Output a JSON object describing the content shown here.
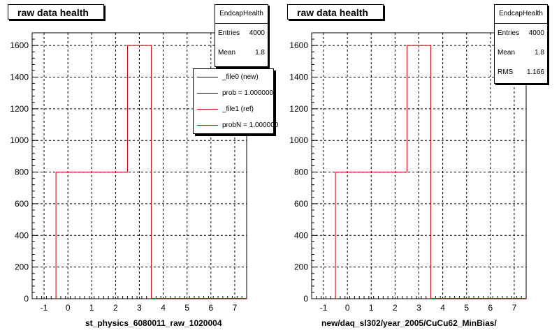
{
  "chart_data": [
    {
      "type": "bar",
      "title": "raw data health",
      "xlabel": "st_physics_6080011_raw_1020004",
      "ylabel": "",
      "xlim": [
        -1.5,
        7.5
      ],
      "ylim": [
        0,
        1680
      ],
      "grid": true,
      "x_ticks": [
        -1,
        0,
        1,
        2,
        3,
        4,
        5,
        6,
        7
      ],
      "y_ticks": [
        0,
        200,
        400,
        600,
        800,
        1000,
        1200,
        1400,
        1600
      ],
      "bins": [
        {
          "low": -0.5,
          "high": 0.5,
          "value": 800
        },
        {
          "low": 0.5,
          "high": 1.5,
          "value": 800
        },
        {
          "low": 1.5,
          "high": 2.5,
          "value": 800
        },
        {
          "low": 2.5,
          "high": 3.5,
          "value": 1600
        }
      ],
      "series": [
        {
          "name": "_file0 (new)",
          "color": "#000000"
        },
        {
          "name": "_file1 (ref)",
          "color": "#cc0000"
        }
      ],
      "stats": {
        "name": "EndcapHealth",
        "rows": [
          {
            "label": "Entries",
            "value": "4000"
          },
          {
            "label": "Mean",
            "value": "1.8"
          }
        ]
      },
      "legend": {
        "placement": "top-right",
        "entries": [
          {
            "label": "_file0 (new)",
            "color": "#000000"
          },
          {
            "label": "prob = 1.000000",
            "color": "#000000"
          },
          {
            "label": "_file1 (ref)",
            "color": "#cc0000"
          },
          {
            "label": "probN = 1.000000",
            "color": "#cc0000"
          }
        ]
      }
    },
    {
      "type": "bar",
      "title": "raw data health",
      "xlabel": "new/daq_sl302/year_2005/CuCu62_MinBias/",
      "ylabel": "",
      "xlim": [
        -1.5,
        7.5
      ],
      "ylim": [
        0,
        1680
      ],
      "grid": true,
      "x_ticks": [
        -1,
        0,
        1,
        2,
        3,
        4,
        5,
        6,
        7
      ],
      "y_ticks": [
        0,
        200,
        400,
        600,
        800,
        1000,
        1200,
        1400,
        1600
      ],
      "bins": [
        {
          "low": -0.5,
          "high": 0.5,
          "value": 800
        },
        {
          "low": 0.5,
          "high": 1.5,
          "value": 800
        },
        {
          "low": 1.5,
          "high": 2.5,
          "value": 800
        },
        {
          "low": 2.5,
          "high": 3.5,
          "value": 1600
        }
      ],
      "series": [
        {
          "name": "",
          "color": "#cc0000"
        }
      ],
      "stats": {
        "name": "EndcapHealth",
        "rows": [
          {
            "label": "Entries",
            "value": "4000"
          },
          {
            "label": "Mean",
            "value": "1.8"
          },
          {
            "label": "RMS",
            "value": "1.166"
          }
        ]
      }
    }
  ]
}
